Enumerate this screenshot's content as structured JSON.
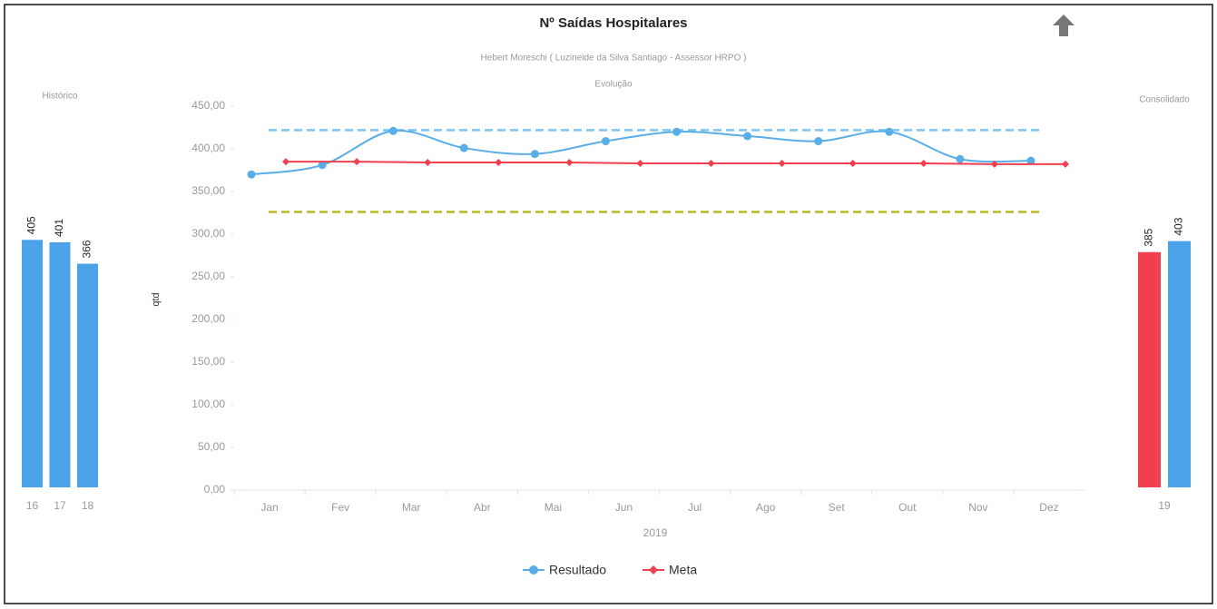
{
  "chart_data": [
    {
      "type": "bar",
      "title": "Histórico",
      "categories": [
        "16",
        "17",
        "18"
      ],
      "values": [
        405,
        401,
        366
      ],
      "color": "#4aa3e8",
      "ylim": [
        0,
        450
      ]
    },
    {
      "type": "line",
      "title": "Nº Saídas Hospitalares",
      "subtitle": "Hebert Moreschi ( Luzineide da Silva Santiago - Assessor HRPO )",
      "subtitle2": "Evolução",
      "y_label": "qtd",
      "x_label": "2019",
      "categories": [
        "Jan",
        "Fev",
        "Mar",
        "Abr",
        "Mai",
        "Jun",
        "Jul",
        "Ago",
        "Set",
        "Out",
        "Nov",
        "Dez"
      ],
      "series": [
        {
          "name": "Resultado",
          "color": "#5aaee8",
          "values": [
            370,
            381,
            421,
            401,
            394,
            409,
            420,
            415,
            409,
            420,
            388,
            386
          ]
        },
        {
          "name": "Meta",
          "color": "#f0404f",
          "values": [
            385,
            385,
            384,
            384,
            384,
            383,
            383,
            383,
            383,
            383,
            382,
            382
          ]
        }
      ],
      "reference_lines": [
        {
          "value": 422,
          "color": "#7cc4f0"
        },
        {
          "value": 326,
          "color": "#b8b820"
        }
      ],
      "ylim": [
        0,
        450
      ],
      "yticks": [
        {
          "value": 0,
          "label": "0,00"
        },
        {
          "value": 50,
          "label": "50,00"
        },
        {
          "value": 100,
          "label": "100,00"
        },
        {
          "value": 150,
          "label": "150,00"
        },
        {
          "value": 200,
          "label": "200,00"
        },
        {
          "value": 250,
          "label": "250,00"
        },
        {
          "value": 300,
          "label": "300,00"
        },
        {
          "value": 350,
          "label": "350,00"
        },
        {
          "value": 400,
          "label": "400,00"
        },
        {
          "value": 450,
          "label": "450,00"
        }
      ],
      "legend": "bottom"
    },
    {
      "type": "bar",
      "title": "Consolidado",
      "categories": [
        "19"
      ],
      "series": [
        {
          "name": "Meta",
          "color": "#f0404f",
          "values": [
            385
          ]
        },
        {
          "name": "Resultado",
          "color": "#4aa3e8",
          "values": [
            403
          ]
        }
      ],
      "ylim": [
        0,
        450
      ]
    }
  ]
}
